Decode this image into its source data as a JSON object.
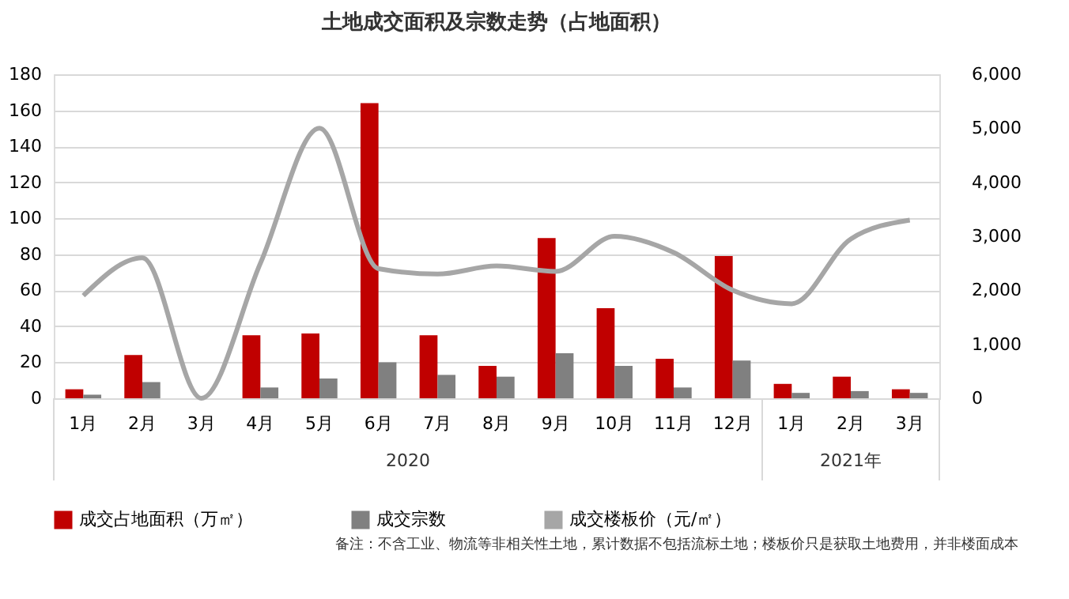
{
  "chart_data": {
    "type": "bar",
    "title": "土地成交面积及宗数走势（占地面积）",
    "categories": [
      "1月",
      "2月",
      "3月",
      "4月",
      "5月",
      "6月",
      "7月",
      "8月",
      "9月",
      "10月",
      "11月",
      "12月",
      "1月",
      "2月",
      "3月"
    ],
    "series": [
      {
        "name": "成交占地面积（万㎡）",
        "color": "#c00000",
        "values": [
          5,
          24,
          0,
          35,
          36,
          164,
          35,
          18,
          89,
          50,
          22,
          79,
          8,
          12,
          5
        ]
      },
      {
        "name": "成交宗数",
        "color": "#808080",
        "values": [
          2,
          9,
          0,
          6,
          11,
          20,
          13,
          12,
          25,
          18,
          6,
          21,
          3,
          4,
          3
        ]
      },
      {
        "name": "成交楼板价（元/㎡）",
        "color": "#a6a6a6",
        "type": "line",
        "axis": "y2",
        "values": [
          1900,
          2600,
          0,
          2500,
          5000,
          2400,
          2300,
          2450,
          2350,
          3000,
          2700,
          2000,
          1750,
          2950,
          3300
        ]
      }
    ],
    "ylim": [
      0,
      180
    ],
    "yticks": [
      0,
      20,
      40,
      60,
      80,
      100,
      120,
      140,
      160,
      180
    ],
    "y2lim": [
      0,
      6000
    ],
    "y2ticks": [
      {
        "value": 0,
        "label": "0"
      },
      {
        "value": 1000,
        "label": "1,000"
      },
      {
        "value": 2000,
        "label": "2,000"
      },
      {
        "value": 3000,
        "label": "3,000"
      },
      {
        "value": 4000,
        "label": "4,000"
      },
      {
        "value": 5000,
        "label": "5,000"
      },
      {
        "value": 6000,
        "label": "6,000"
      }
    ],
    "grid": "y",
    "legend": "bottom",
    "line_style": "solid",
    "marker": "none",
    "annotations": [
      "2020",
      "2021年",
      "备注：不含工业、物流等非相关性土地，累计数据不包括流标土地；楼板价只是获取土地费用，并非楼面成本"
    ]
  }
}
